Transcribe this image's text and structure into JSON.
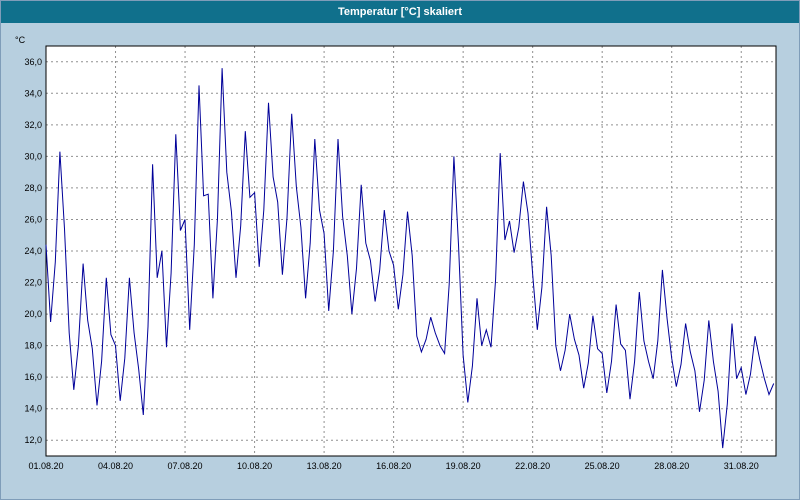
{
  "window": {
    "title": "Temperatur [°C] skaliert"
  },
  "chart_data": {
    "type": "line",
    "title": "Temperatur [°C] skaliert",
    "xlabel": "",
    "ylabel": "°C",
    "legend": "none",
    "grid": "dashed",
    "xlim": [
      1,
      32.5
    ],
    "ylim": [
      11,
      37
    ],
    "xtick_values": [
      1,
      4,
      7,
      10,
      13,
      16,
      19,
      22,
      25,
      28,
      31
    ],
    "xtick_labels": [
      "01.08.20",
      "04.08.20",
      "07.08.20",
      "10.08.20",
      "13.08.20",
      "16.08.20",
      "19.08.20",
      "22.08.20",
      "25.08.20",
      "28.08.20",
      "31.08.20"
    ],
    "ytick_values": [
      12,
      14,
      16,
      18,
      20,
      22,
      24,
      26,
      28,
      30,
      32,
      34,
      36
    ],
    "ytick_labels": [
      "12,0",
      "14,0",
      "16,0",
      "18,0",
      "20,0",
      "22,0",
      "24,0",
      "26,0",
      "28,0",
      "30,0",
      "32,0",
      "34,0",
      "36,0"
    ],
    "colors": {
      "titlebar": "#10708c",
      "frame": "#b7cfdf",
      "plot_background": "#ffffff",
      "plot_border": "#000000",
      "grid": "#909090",
      "line": "#000099",
      "text": "#000000"
    },
    "series": [
      {
        "name": "Temperatur",
        "unit": "°C",
        "x_start": 1.0,
        "x_step": 0.2,
        "y": [
          24.4,
          19.5,
          23.3,
          30.3,
          25.4,
          18.8,
          15.2,
          18.0,
          23.2,
          19.6,
          17.8,
          14.2,
          17.0,
          22.3,
          18.7,
          18.0,
          14.5,
          17.2,
          22.3,
          18.8,
          16.5,
          13.6,
          19.2,
          29.5,
          22.3,
          24.0,
          17.9,
          22.6,
          31.4,
          25.3,
          26.0,
          19.0,
          24.4,
          34.5,
          27.5,
          27.6,
          21.0,
          26.1,
          35.6,
          29.0,
          26.5,
          22.3,
          25.6,
          31.6,
          27.4,
          27.7,
          23.0,
          26.6,
          33.4,
          28.7,
          27.1,
          22.5,
          26.1,
          32.7,
          28.1,
          25.5,
          21.0,
          24.5,
          31.1,
          26.6,
          25.1,
          20.2,
          24.0,
          31.1,
          26.2,
          23.7,
          20.0,
          22.9,
          28.2,
          24.5,
          23.4,
          20.8,
          22.8,
          26.6,
          24.0,
          23.1,
          20.3,
          22.5,
          26.5,
          23.7,
          18.6,
          17.6,
          18.4,
          19.8,
          18.8,
          18.0,
          17.5,
          21.9,
          30.0,
          24.4,
          17.4,
          14.4,
          16.7,
          21.0,
          18.0,
          19.0,
          17.9,
          22.2,
          30.2,
          24.7,
          25.9,
          23.9,
          25.5,
          28.4,
          26.4,
          22.5,
          19.0,
          21.7,
          26.8,
          23.7,
          18.0,
          16.4,
          17.7,
          20.0,
          18.4,
          17.4,
          15.3,
          16.9,
          19.9,
          17.8,
          17.5,
          15.0,
          17.0,
          20.6,
          18.1,
          17.7,
          14.6,
          17.0,
          21.4,
          18.3,
          17.0,
          15.9,
          18.3,
          22.8,
          19.7,
          17.2,
          15.4,
          16.8,
          19.4,
          17.6,
          16.4,
          13.8,
          15.8,
          19.6,
          17.0,
          15.1,
          11.5,
          14.3,
          19.4,
          15.9,
          16.6,
          14.9,
          16.2,
          18.6,
          17.1,
          15.9,
          14.9,
          15.6
        ]
      }
    ]
  }
}
